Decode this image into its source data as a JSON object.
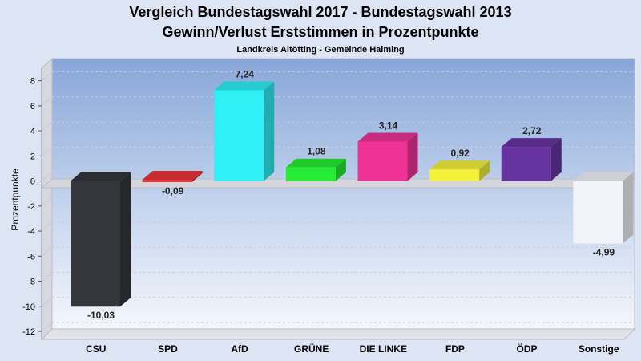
{
  "chart_data": {
    "type": "bar",
    "title": "Vergleich Bundestagswahl 2017 - Bundestagswahl 2013",
    "title2": "Gewinn/Verlust Erststimmen in Prozentpunkte",
    "subtitle": "Landkreis Altötting - Gemeinde Haiming",
    "ylabel": "Prozentpunkte",
    "ylim": [
      -12,
      9
    ],
    "yticks": [
      8,
      6,
      4,
      2,
      0,
      -2,
      -4,
      -6,
      -8,
      -10,
      -12
    ],
    "grid": true,
    "categories": [
      "CSU",
      "SPD",
      "AfD",
      "GRÜNE",
      "DIE LINKE",
      "FDP",
      "ÖDP",
      "Sonstige"
    ],
    "values": [
      -10.03,
      -0.09,
      7.24,
      1.08,
      3.14,
      0.92,
      2.72,
      -4.99
    ],
    "value_labels": [
      "-10,03",
      "-0,09",
      "7,24",
      "1,08",
      "3,14",
      "0,92",
      "2,72",
      "-4,99"
    ],
    "colors": [
      "#33363a",
      "#e8353b",
      "#2ff0f5",
      "#27ec35",
      "#ee3296",
      "#f3f13a",
      "#6633a0",
      "#f2f3f8"
    ]
  }
}
